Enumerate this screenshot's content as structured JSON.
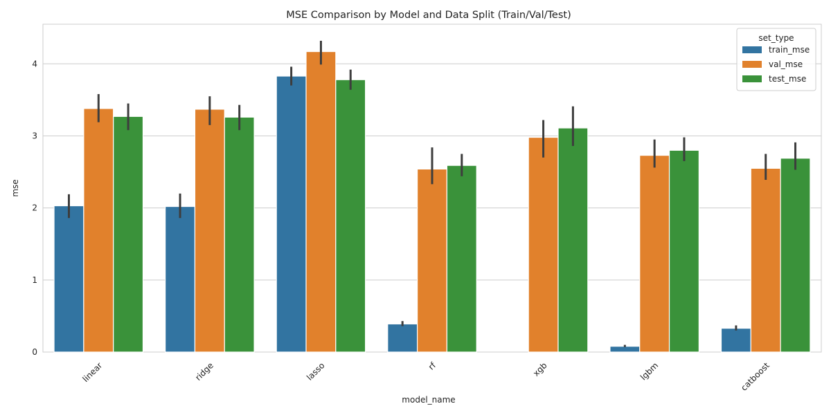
{
  "chart_data": {
    "type": "bar",
    "title": "MSE Comparison by Model and Data Split (Train/Val/Test)",
    "xlabel": "model_name",
    "ylabel": "mse",
    "categories": [
      "linear",
      "ridge",
      "lasso",
      "rf",
      "xgb",
      "lgbm",
      "catboost"
    ],
    "ylim": [
      0,
      4.55
    ],
    "yticks": [
      0,
      1,
      2,
      3,
      4
    ],
    "grid": "y",
    "legend": {
      "title": "set_type",
      "position": "top-right"
    },
    "series": [
      {
        "name": "train_mse",
        "color": "#3274a1",
        "values": [
          2.03,
          2.02,
          3.83,
          0.39,
          0.0,
          0.08,
          0.33
        ],
        "error_low": [
          1.86,
          1.86,
          3.7,
          0.36,
          0.0,
          0.07,
          0.3
        ],
        "error_high": [
          2.19,
          2.2,
          3.96,
          0.43,
          0.0,
          0.1,
          0.37
        ]
      },
      {
        "name": "val_mse",
        "color": "#e1812c",
        "values": [
          3.38,
          3.37,
          4.17,
          2.54,
          2.98,
          2.73,
          2.55
        ],
        "error_low": [
          3.19,
          3.15,
          3.99,
          2.33,
          2.7,
          2.56,
          2.39
        ],
        "error_high": [
          3.58,
          3.55,
          4.32,
          2.84,
          3.22,
          2.95,
          2.75
        ]
      },
      {
        "name": "test_mse",
        "color": "#3a923a",
        "values": [
          3.27,
          3.26,
          3.78,
          2.59,
          3.11,
          2.8,
          2.69
        ],
        "error_low": [
          3.08,
          3.08,
          3.64,
          2.44,
          2.86,
          2.65,
          2.53
        ],
        "error_high": [
          3.45,
          3.43,
          3.92,
          2.75,
          3.41,
          2.98,
          2.91
        ]
      }
    ]
  }
}
